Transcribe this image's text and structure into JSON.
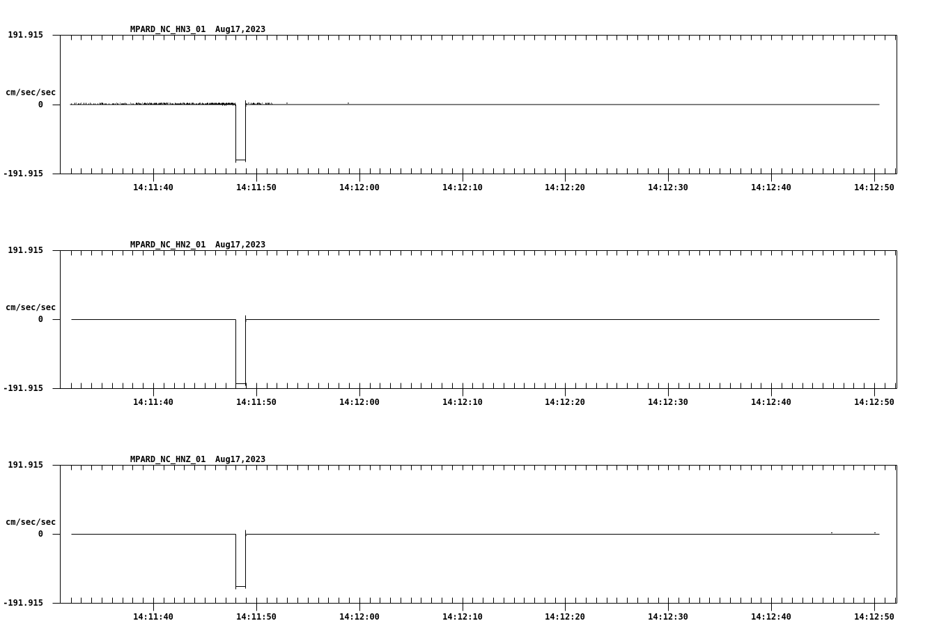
{
  "page": {
    "background": "#ffffff",
    "axis_color": "#000000",
    "trace_color": "#000000"
  },
  "chart_data": [
    {
      "type": "line",
      "panel": "top",
      "station_channel": "MPARD_NC_HN3_01",
      "date_label": "Aug17,2023",
      "title": "MPARD_NC_HN3_01  Aug17,2023",
      "ylabel": "cm/sec/sec",
      "ylim": [
        -191.915,
        191.915
      ],
      "ytick_values": [
        191.915,
        0,
        -191.915
      ],
      "ytick_labels": [
        "191.915",
        "0",
        "-191.915"
      ],
      "xtick_labels": [
        "14:11:40",
        "14:11:50",
        "14:12:00",
        "14:12:10",
        "14:12:20",
        "14:12:30",
        "14:12:40",
        "14:12:50"
      ],
      "xtick_interval_sec": 10,
      "minor_tick_interval_sec": 1,
      "x_axis_start": "14:11:31",
      "x_axis_end": "14:12:52",
      "grid": false,
      "legend": false,
      "baseline_value": 0,
      "trace_start": "14:11:31.9",
      "trace_end": "14:12:50.5",
      "pulse": {
        "start": "14:11:47.95",
        "end": "14:11:48.95",
        "value": -154,
        "duration_sec": 1
      },
      "noise_segments": [
        {
          "from": "14:11:31.9",
          "to": "14:11:38.3",
          "density": 0.35
        },
        {
          "from": "14:11:38.3",
          "to": "14:11:45.5",
          "density": 0.7
        },
        {
          "from": "14:11:45.5",
          "to": "14:11:47.9",
          "density": 1.0
        },
        {
          "from": "14:11:49.0",
          "to": "14:11:51.5",
          "density": 0.5
        }
      ],
      "specks": [
        "14:11:52.9",
        "14:11:58.9"
      ]
    },
    {
      "type": "line",
      "panel": "middle",
      "station_channel": "MPARD_NC_HN2_01",
      "date_label": "Aug17,2023",
      "title": "MPARD_NC_HN2_01  Aug17,2023",
      "ylabel": "cm/sec/sec",
      "ylim": [
        -191.915,
        191.915
      ],
      "ytick_values": [
        191.915,
        0,
        -191.915
      ],
      "ytick_labels": [
        "191.915",
        "0",
        "-191.915"
      ],
      "xtick_labels": [
        "14:11:40",
        "14:11:50",
        "14:12:00",
        "14:12:10",
        "14:12:20",
        "14:12:30",
        "14:12:40",
        "14:12:50"
      ],
      "xtick_interval_sec": 10,
      "minor_tick_interval_sec": 1,
      "x_axis_start": "14:11:31",
      "x_axis_end": "14:12:52",
      "grid": false,
      "legend": false,
      "baseline_value": 0,
      "trace_start": "14:11:32.0",
      "trace_end": "14:12:50.5",
      "pulse": {
        "start": "14:11:47.95",
        "end": "14:11:48.95",
        "value": -178,
        "duration_sec": 1
      },
      "noise_segments": [],
      "specks": []
    },
    {
      "type": "line",
      "panel": "bottom",
      "station_channel": "MPARD_NC_HNZ_01",
      "date_label": "Aug17,2023",
      "title": "MPARD_NC_HNZ_01  Aug17,2023",
      "ylabel": "cm/sec/sec",
      "ylim": [
        -191.915,
        191.915
      ],
      "ytick_values": [
        191.915,
        0,
        -191.915
      ],
      "ytick_labels": [
        "191.915",
        "0",
        "-191.915"
      ],
      "xtick_labels": [
        "14:11:40",
        "14:11:50",
        "14:12:00",
        "14:12:10",
        "14:12:20",
        "14:12:30",
        "14:12:40",
        "14:12:50"
      ],
      "xtick_interval_sec": 10,
      "minor_tick_interval_sec": 1,
      "x_axis_start": "14:11:31",
      "x_axis_end": "14:12:52",
      "grid": false,
      "legend": false,
      "baseline_value": 0,
      "trace_start": "14:11:32.0",
      "trace_end": "14:12:50.5",
      "pulse": {
        "start": "14:11:47.95",
        "end": "14:11:48.95",
        "value": -145,
        "duration_sec": 1
      },
      "noise_segments": [],
      "specks": [
        "14:12:45.8",
        "14:12:50.0"
      ]
    }
  ]
}
